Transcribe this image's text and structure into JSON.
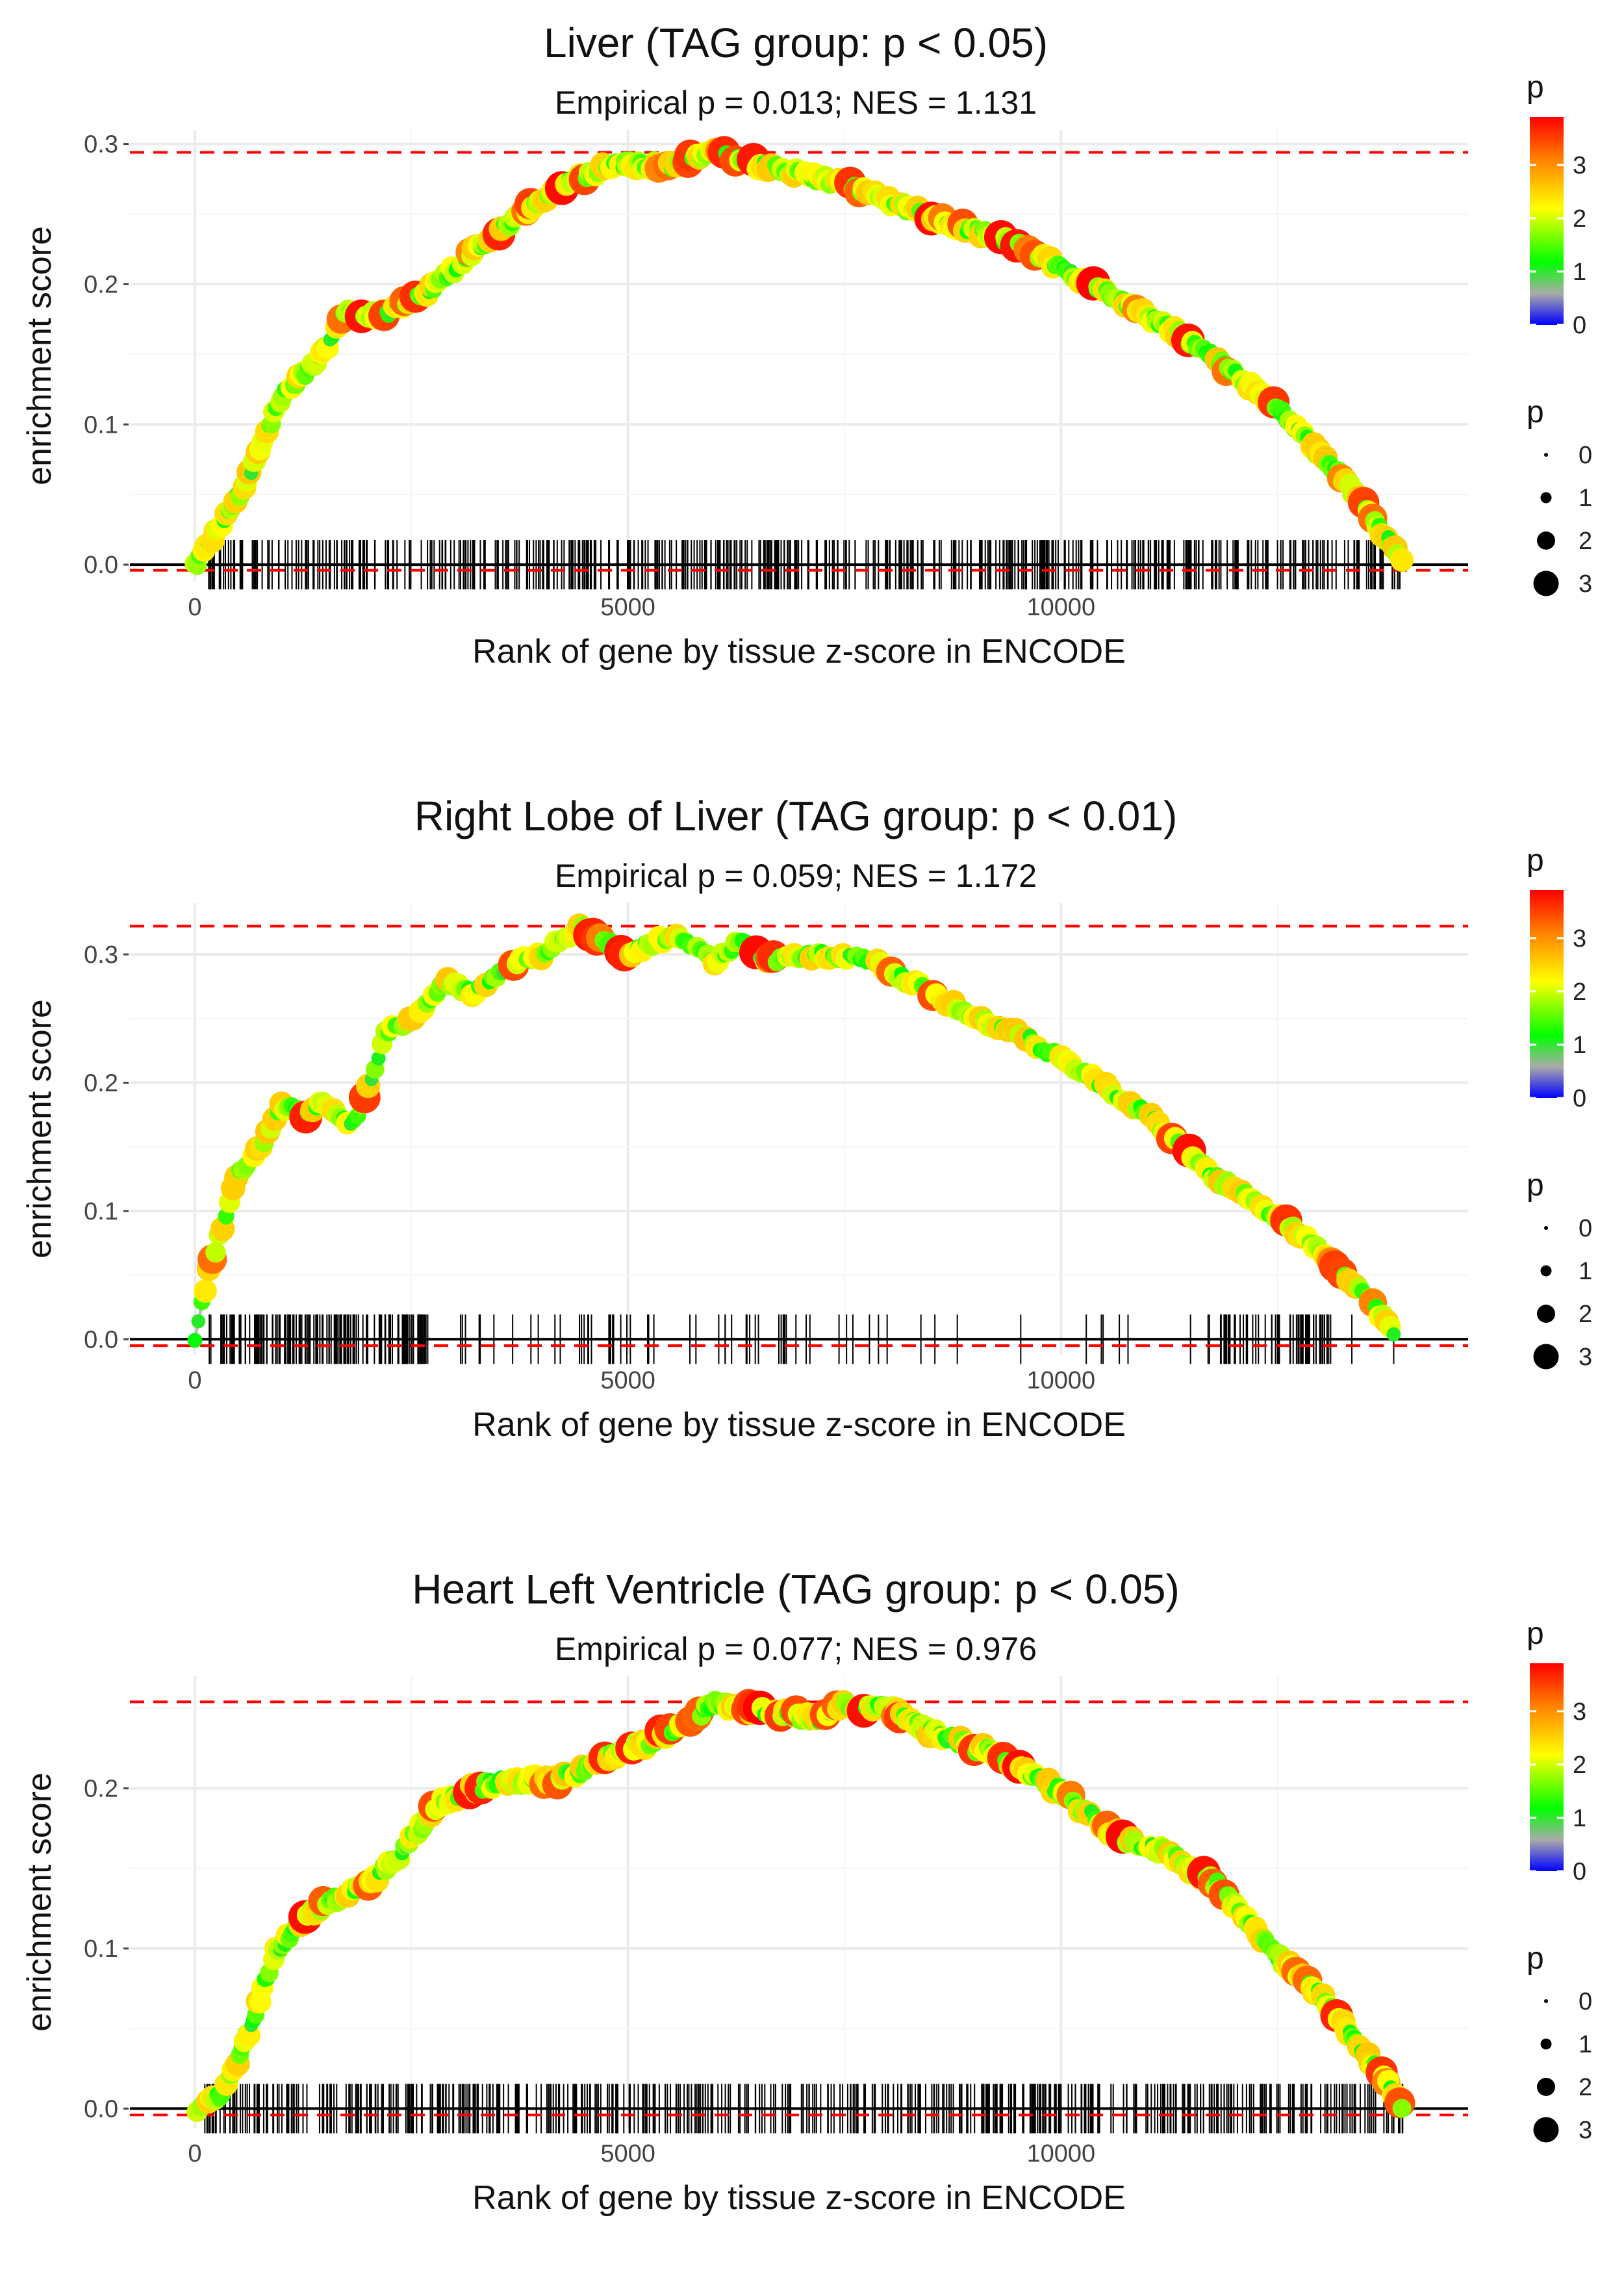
{
  "chart_data": [
    {
      "type": "line",
      "title": "Liver (TAG group: p < 0.05)",
      "subtitle": "Empirical p = 0.013; NES = 1.131",
      "xlabel": "Rank of gene by tissue z-score in ENCODE",
      "ylabel": "enrichment score",
      "xlim": [
        -750,
        14700
      ],
      "ylim": [
        -0.012,
        0.31
      ],
      "x_ticks": [
        0,
        5000,
        10000
      ],
      "y_ticks": [
        0.0,
        0.1,
        0.2,
        0.3
      ],
      "x_tick_labels": [
        "0",
        "5000",
        "10000"
      ],
      "y_tick_labels": [
        "0.0",
        "0.1",
        "0.2",
        "0.3"
      ],
      "max_es": 0.294,
      "min_es": -0.004,
      "hits_density": "dense",
      "curve": [
        [
          0,
          0
        ],
        [
          200,
          0.018
        ],
        [
          600,
          0.06
        ],
        [
          1000,
          0.12
        ],
        [
          1450,
          0.148
        ],
        [
          1750,
          0.182
        ],
        [
          2100,
          0.178
        ],
        [
          2600,
          0.19
        ],
        [
          3200,
          0.222
        ],
        [
          3800,
          0.252
        ],
        [
          4300,
          0.272
        ],
        [
          4800,
          0.285
        ],
        [
          5500,
          0.285
        ],
        [
          6000,
          0.294
        ],
        [
          6500,
          0.285
        ],
        [
          7500,
          0.272
        ],
        [
          8500,
          0.248
        ],
        [
          9500,
          0.228
        ],
        [
          10500,
          0.195
        ],
        [
          11500,
          0.16
        ],
        [
          12500,
          0.112
        ],
        [
          13300,
          0.058
        ],
        [
          13950,
          0.003
        ]
      ],
      "legend_color": {
        "title": "p",
        "ticks": [
          0,
          1,
          2,
          3
        ],
        "tick_labels": [
          "0",
          "1",
          "2",
          "3"
        ],
        "max": 3.9,
        "colors": [
          "#0000ff",
          "#aaaaaa",
          "#00ff00",
          "#ffff00",
          "#ff7f00",
          "#ff0000"
        ]
      },
      "legend_size": {
        "title": "p",
        "values": [
          0,
          1,
          2,
          3
        ],
        "labels": [
          "0",
          "1",
          "2",
          "3"
        ]
      }
    },
    {
      "type": "line",
      "title": "Right Lobe of Liver (TAG group: p < 0.01)",
      "subtitle": "Empirical p = 0.059; NES = 1.172",
      "xlabel": "Rank of gene by tissue z-score in ENCODE",
      "ylabel": "enrichment score",
      "xlim": [
        -750,
        14700
      ],
      "ylim": [
        -0.012,
        0.34
      ],
      "x_ticks": [
        0,
        5000,
        10000
      ],
      "y_ticks": [
        0.0,
        0.1,
        0.2,
        0.3
      ],
      "x_tick_labels": [
        "0",
        "5000",
        "10000"
      ],
      "y_tick_labels": [
        "0.0",
        "0.1",
        "0.2",
        "0.3"
      ],
      "max_es": 0.322,
      "min_es": -0.005,
      "hits_density": "sparse",
      "curve": [
        [
          0,
          0
        ],
        [
          150,
          0.05
        ],
        [
          500,
          0.13
        ],
        [
          800,
          0.155
        ],
        [
          1000,
          0.182
        ],
        [
          1300,
          0.175
        ],
        [
          1500,
          0.185
        ],
        [
          1800,
          0.165
        ],
        [
          2000,
          0.195
        ],
        [
          2200,
          0.24
        ],
        [
          2500,
          0.25
        ],
        [
          2700,
          0.26
        ],
        [
          2900,
          0.28
        ],
        [
          3200,
          0.27
        ],
        [
          3600,
          0.29
        ],
        [
          4000,
          0.3
        ],
        [
          4450,
          0.322
        ],
        [
          5000,
          0.3
        ],
        [
          5500,
          0.315
        ],
        [
          6000,
          0.295
        ],
        [
          6300,
          0.31
        ],
        [
          6600,
          0.295
        ],
        [
          7200,
          0.3
        ],
        [
          7800,
          0.295
        ],
        [
          8500,
          0.27
        ],
        [
          9200,
          0.245
        ],
        [
          9600,
          0.235
        ],
        [
          10200,
          0.21
        ],
        [
          11000,
          0.175
        ],
        [
          11700,
          0.13
        ],
        [
          12400,
          0.1
        ],
        [
          13000,
          0.07
        ],
        [
          13500,
          0.035
        ],
        [
          13850,
          0.005
        ]
      ],
      "legend_color": {
        "title": "p",
        "ticks": [
          0,
          1,
          2,
          3
        ],
        "tick_labels": [
          "0",
          "1",
          "2",
          "3"
        ],
        "max": 3.9,
        "colors": [
          "#0000ff",
          "#aaaaaa",
          "#00ff00",
          "#ffff00",
          "#ff7f00",
          "#ff0000"
        ]
      },
      "legend_size": {
        "title": "p",
        "values": [
          0,
          1,
          2,
          3
        ],
        "labels": [
          "0",
          "1",
          "2",
          "3"
        ]
      }
    },
    {
      "type": "line",
      "title": "Heart Left Ventricle (TAG group: p < 0.05)",
      "subtitle": "Empirical p = 0.077; NES = 0.976",
      "xlabel": "Rank of gene by tissue z-score in ENCODE",
      "ylabel": "enrichment score",
      "xlim": [
        -750,
        14700
      ],
      "ylim": [
        -0.012,
        0.27
      ],
      "x_ticks": [
        0,
        5000,
        10000
      ],
      "y_ticks": [
        0.0,
        0.1,
        0.2
      ],
      "x_tick_labels": [
        "0",
        "5000",
        "10000"
      ],
      "y_tick_labels": [
        "0.0",
        "0.1",
        "0.2"
      ],
      "max_es": 0.254,
      "min_es": -0.004,
      "hits_density": "dense",
      "curve": [
        [
          0,
          0
        ],
        [
          300,
          0.01
        ],
        [
          500,
          0.03
        ],
        [
          700,
          0.06
        ],
        [
          900,
          0.095
        ],
        [
          1200,
          0.115
        ],
        [
          1500,
          0.128
        ],
        [
          2000,
          0.14
        ],
        [
          2400,
          0.16
        ],
        [
          2800,
          0.19
        ],
        [
          3200,
          0.2
        ],
        [
          3600,
          0.205
        ],
        [
          4200,
          0.205
        ],
        [
          4700,
          0.218
        ],
        [
          5200,
          0.228
        ],
        [
          5700,
          0.242
        ],
        [
          6000,
          0.254
        ],
        [
          6500,
          0.248
        ],
        [
          7200,
          0.244
        ],
        [
          7500,
          0.252
        ],
        [
          8000,
          0.25
        ],
        [
          8500,
          0.235
        ],
        [
          9200,
          0.222
        ],
        [
          10000,
          0.198
        ],
        [
          10600,
          0.172
        ],
        [
          11200,
          0.16
        ],
        [
          11800,
          0.14
        ],
        [
          12400,
          0.1
        ],
        [
          13000,
          0.07
        ],
        [
          13500,
          0.035
        ],
        [
          13950,
          0.002
        ]
      ],
      "legend_color": {
        "title": "p",
        "ticks": [
          0,
          1,
          2,
          3
        ],
        "tick_labels": [
          "0",
          "1",
          "2",
          "3"
        ],
        "max": 3.9,
        "colors": [
          "#0000ff",
          "#aaaaaa",
          "#00ff00",
          "#ffff00",
          "#ff7f00",
          "#ff0000"
        ]
      },
      "legend_size": {
        "title": "p",
        "values": [
          0,
          1,
          2,
          3
        ],
        "labels": [
          "0",
          "1",
          "2",
          "3"
        ]
      }
    }
  ]
}
